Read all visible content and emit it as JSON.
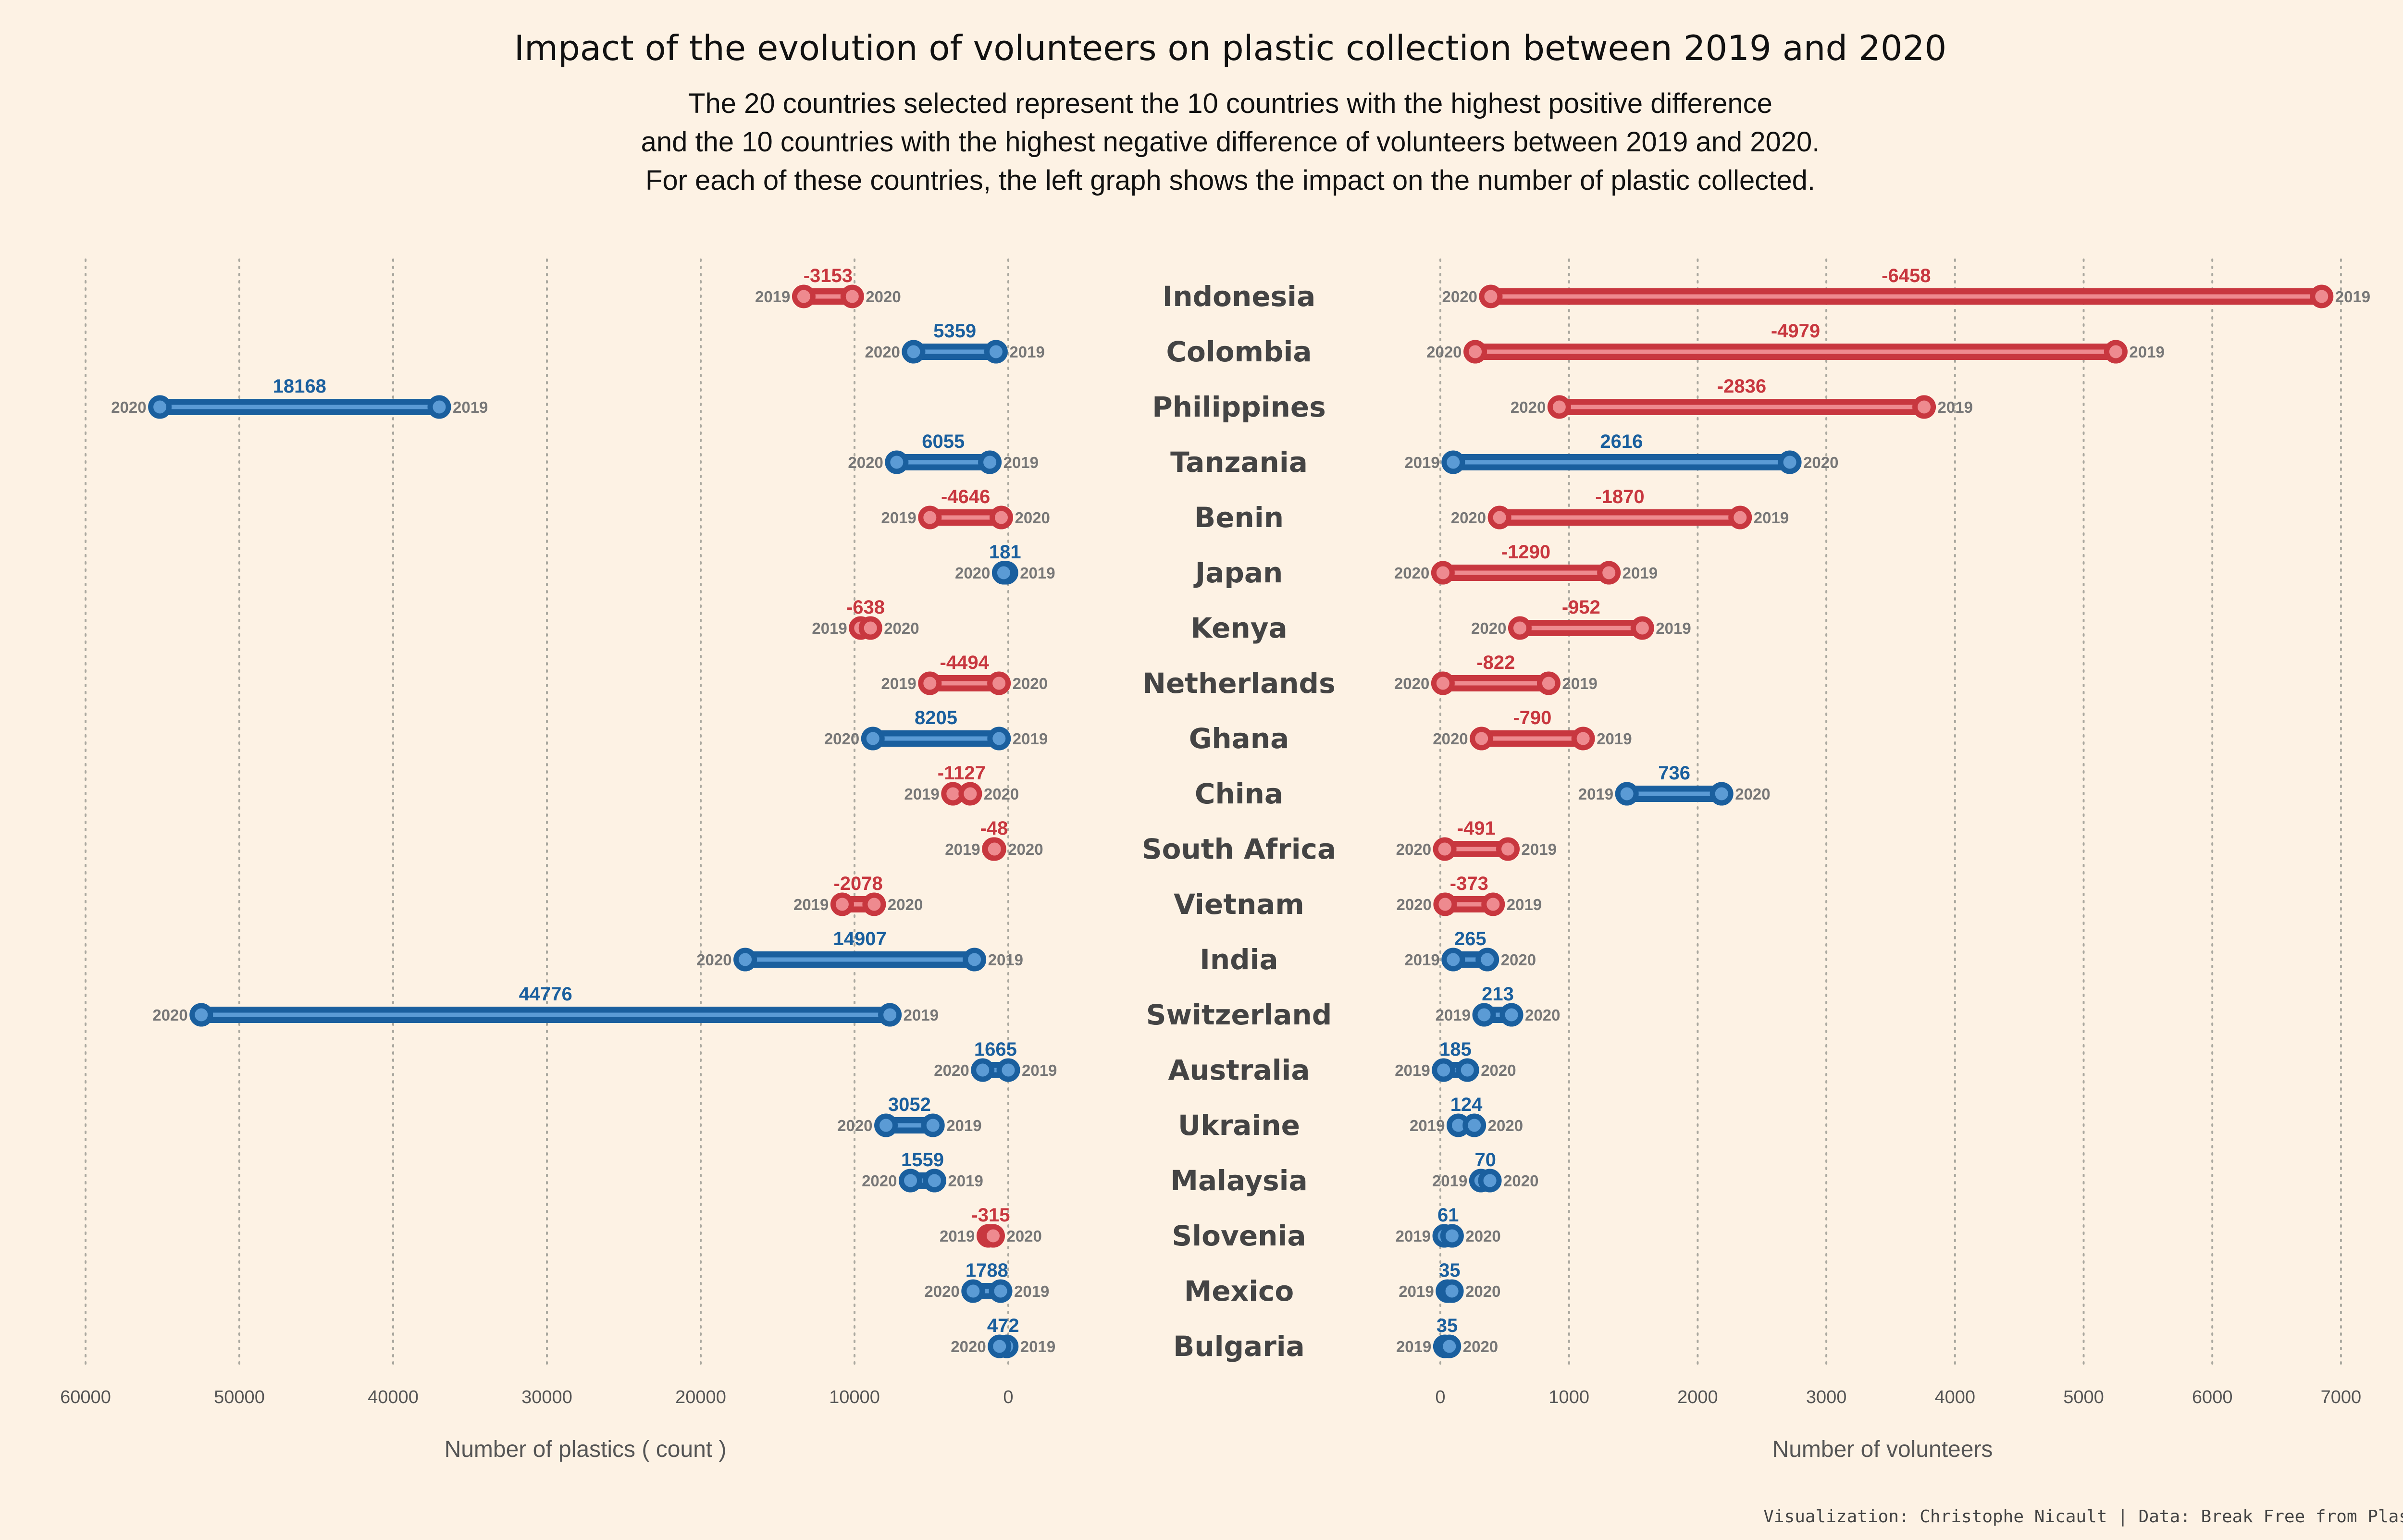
{
  "chart_data": {
    "type": "dumbbell",
    "title": "Impact of the evolution of volunteers on plastic collection between 2019 and 2020",
    "subtitle": [
      "The 20 countries selected represent the 10 countries with the highest positive difference",
      "and the 10 countries with the highest negative difference of volunteers between 2019 and 2020.",
      "For each of these countries, the left graph shows the impact on the number of plastic collected."
    ],
    "caption": "Visualization: Christophe Nicault | Data: Break Free from Plastic",
    "series": [
      {
        "name": "2019"
      },
      {
        "name": "2020"
      }
    ],
    "colors": {
      "positive": "#1a5f9e",
      "positive_light": "#5b9bd5",
      "negative": "#c8373f",
      "negative_light": "#ee8a8f"
    },
    "left_panel": {
      "xlabel": "Number of plastics ( count )",
      "xlim": [
        60000,
        0
      ],
      "ticks": [
        "60000",
        "50000",
        "40000",
        "30000",
        "20000",
        "10000",
        "0"
      ],
      "reversed": true
    },
    "right_panel": {
      "xlabel": "Number of volunteers",
      "xlim": [
        0,
        7000
      ],
      "ticks": [
        "0",
        "1000",
        "2000",
        "3000",
        "4000",
        "5000",
        "6000",
        "7000"
      ]
    },
    "countries": [
      {
        "name": "Indonesia",
        "plastic_2019": 13300,
        "plastic_2020": 10147,
        "plastic_diff": "-3153",
        "vol_2019": 6850,
        "vol_2020": 392,
        "vol_diff": "-6458"
      },
      {
        "name": "Colombia",
        "plastic_2019": 800,
        "plastic_2020": 6159,
        "plastic_diff": "5359",
        "vol_2019": 5250,
        "vol_2020": 271,
        "vol_diff": "-4979"
      },
      {
        "name": "Philippines",
        "plastic_2019": 37000,
        "plastic_2020": 55168,
        "plastic_diff": "18168",
        "vol_2019": 3760,
        "vol_2020": 924,
        "vol_diff": "-2836"
      },
      {
        "name": "Tanzania",
        "plastic_2019": 1200,
        "plastic_2020": 7255,
        "plastic_diff": "6055",
        "vol_2019": 100,
        "vol_2020": 2716,
        "vol_diff": "2616"
      },
      {
        "name": "Benin",
        "plastic_2019": 5100,
        "plastic_2020": 454,
        "plastic_diff": "-4646",
        "vol_2019": 2330,
        "vol_2020": 460,
        "vol_diff": "-1870"
      },
      {
        "name": "Japan",
        "plastic_2019": 119,
        "plastic_2020": 300,
        "plastic_diff": "181",
        "vol_2019": 1310,
        "vol_2020": 20,
        "vol_diff": "-1290"
      },
      {
        "name": "Kenya",
        "plastic_2019": 9600,
        "plastic_2020": 8962,
        "plastic_diff": "-638",
        "vol_2019": 1570,
        "vol_2020": 618,
        "vol_diff": "-952"
      },
      {
        "name": "Netherlands",
        "plastic_2019": 5100,
        "plastic_2020": 606,
        "plastic_diff": "-4494",
        "vol_2019": 842,
        "vol_2020": 20,
        "vol_diff": "-822"
      },
      {
        "name": "Ghana",
        "plastic_2019": 600,
        "plastic_2020": 8805,
        "plastic_diff": "8205",
        "vol_2019": 1110,
        "vol_2020": 320,
        "vol_diff": "-790"
      },
      {
        "name": "China",
        "plastic_2019": 3600,
        "plastic_2020": 2473,
        "plastic_diff": "-1127",
        "vol_2019": 1450,
        "vol_2020": 2186,
        "vol_diff": "736"
      },
      {
        "name": "South Africa",
        "plastic_2019": 948,
        "plastic_2020": 900,
        "plastic_diff": "-48",
        "vol_2019": 525,
        "vol_2020": 34,
        "vol_diff": "-491"
      },
      {
        "name": "Vietnam",
        "plastic_2019": 10800,
        "plastic_2020": 8722,
        "plastic_diff": "-2078",
        "vol_2019": 410,
        "vol_2020": 37,
        "vol_diff": "-373"
      },
      {
        "name": "India",
        "plastic_2019": 2200,
        "plastic_2020": 17107,
        "plastic_diff": "14907",
        "vol_2019": 100,
        "vol_2020": 365,
        "vol_diff": "265"
      },
      {
        "name": "Switzerland",
        "plastic_2019": 7700,
        "plastic_2020": 52476,
        "plastic_diff": "44776",
        "vol_2019": 340,
        "vol_2020": 553,
        "vol_diff": "213"
      },
      {
        "name": "Australia",
        "plastic_2019": 0,
        "plastic_2020": 1665,
        "plastic_diff": "1665",
        "vol_2019": 25,
        "vol_2020": 210,
        "vol_diff": "185"
      },
      {
        "name": "Ukraine",
        "plastic_2019": 4900,
        "plastic_2020": 7952,
        "plastic_diff": "3052",
        "vol_2019": 140,
        "vol_2020": 264,
        "vol_diff": "124"
      },
      {
        "name": "Malaysia",
        "plastic_2019": 4800,
        "plastic_2020": 6359,
        "plastic_diff": "1559",
        "vol_2019": 315,
        "vol_2020": 385,
        "vol_diff": "70"
      },
      {
        "name": "Slovenia",
        "plastic_2019": 1300,
        "plastic_2020": 985,
        "plastic_diff": "-315",
        "vol_2019": 30,
        "vol_2020": 91,
        "vol_diff": "61"
      },
      {
        "name": "Mexico",
        "plastic_2019": 500,
        "plastic_2020": 2288,
        "plastic_diff": "1788",
        "vol_2019": 55,
        "vol_2020": 90,
        "vol_diff": "35"
      },
      {
        "name": "Bulgaria",
        "plastic_2019": 100,
        "plastic_2020": 572,
        "plastic_diff": "472",
        "vol_2019": 35,
        "vol_2020": 70,
        "vol_diff": "35"
      }
    ]
  }
}
